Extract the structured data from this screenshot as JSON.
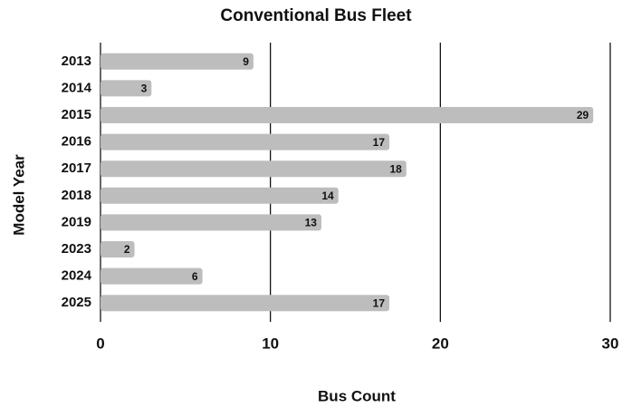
{
  "chart_data": {
    "type": "bar",
    "orientation": "horizontal",
    "title": "Conventional Bus Fleet",
    "x_label": "Bus Count",
    "y_label": "Model Year",
    "categories": [
      "2013",
      "2014",
      "2015",
      "2016",
      "2017",
      "2018",
      "2019",
      "2023",
      "2024",
      "2025"
    ],
    "values": [
      9,
      3,
      29,
      17,
      18,
      14,
      13,
      2,
      6,
      17
    ],
    "color": "#bdbdbd",
    "xlim": [
      0,
      30
    ],
    "xticks": [
      0,
      10,
      20,
      30
    ],
    "grid": true
  }
}
